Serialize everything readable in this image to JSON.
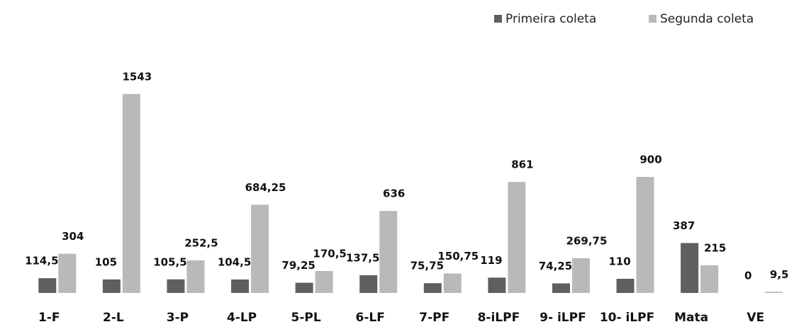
{
  "chart_data": {
    "type": "bar",
    "categories": [
      "1-F",
      "2-L",
      "3-P",
      "4-LP",
      "5-PL",
      "6-LF",
      "7-PF",
      "8-iLPF",
      "9- iLPF",
      "10- iLPF",
      "Mata",
      "VE"
    ],
    "series": [
      {
        "name": "Primeira coleta",
        "color": "#5f5f5f",
        "values": [
          114.5,
          105,
          105.5,
          104.5,
          79.25,
          137.5,
          75.75,
          119,
          74.25,
          110,
          387,
          0
        ],
        "value_labels": [
          "114,5",
          "105",
          "105,5",
          "104,5",
          "79,25",
          "137,5",
          "75,75",
          "119",
          "74,25",
          "110",
          "387",
          "0"
        ]
      },
      {
        "name": "Segunda coleta",
        "color": "#b9b9b9",
        "values": [
          304,
          1543,
          252.5,
          684.25,
          170.5,
          636,
          150.75,
          861,
          269.75,
          900,
          215,
          9.5
        ],
        "value_labels": [
          "304",
          "1543",
          "252,5",
          "684,25",
          "170,5",
          "636",
          "150,75",
          "861",
          "269,75",
          "900",
          "215",
          "9,5"
        ]
      }
    ],
    "ylim": [
      0,
      1800
    ],
    "legend": "top-right"
  }
}
